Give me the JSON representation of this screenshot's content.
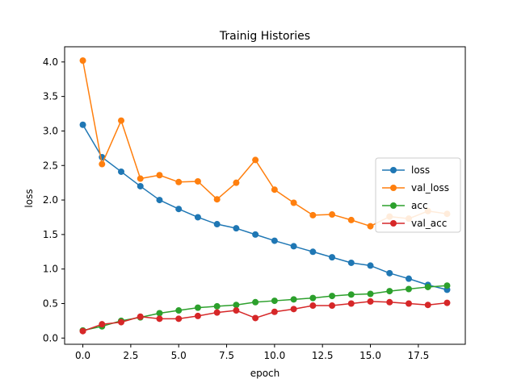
{
  "chart_data": {
    "type": "line",
    "title": "Trainig Histories",
    "xlabel": "epoch",
    "ylabel": "loss",
    "xlim": [
      -0.95,
      19.95
    ],
    "ylim": [
      -0.09,
      4.22
    ],
    "xticks": [
      0.0,
      2.5,
      5.0,
      7.5,
      10.0,
      12.5,
      15.0,
      17.5
    ],
    "xtick_labels": [
      "0.0",
      "2.5",
      "5.0",
      "7.5",
      "10.0",
      "12.5",
      "15.0",
      "17.5"
    ],
    "yticks": [
      0.0,
      0.5,
      1.0,
      1.5,
      2.0,
      2.5,
      3.0,
      3.5,
      4.0
    ],
    "ytick_labels": [
      "0.0",
      "0.5",
      "1.0",
      "1.5",
      "2.0",
      "2.5",
      "3.0",
      "3.5",
      "4.0"
    ],
    "grid": false,
    "legend_position": "center-right",
    "x": [
      0,
      1,
      2,
      3,
      4,
      5,
      6,
      7,
      8,
      9,
      10,
      11,
      12,
      13,
      14,
      15,
      16,
      17,
      18,
      19
    ],
    "series": [
      {
        "name": "loss",
        "color": "#1f77b4",
        "values": [
          3.09,
          2.62,
          2.41,
          2.2,
          2.0,
          1.87,
          1.75,
          1.65,
          1.59,
          1.5,
          1.41,
          1.33,
          1.25,
          1.17,
          1.09,
          1.05,
          0.94,
          0.86,
          0.77,
          0.7
        ]
      },
      {
        "name": "val_loss",
        "color": "#ff7f0e",
        "values": [
          4.02,
          2.52,
          3.15,
          2.31,
          2.36,
          2.26,
          2.27,
          2.01,
          2.25,
          2.58,
          2.15,
          1.96,
          1.78,
          1.79,
          1.71,
          1.62,
          1.76,
          1.73,
          1.84,
          1.8
        ]
      },
      {
        "name": "acc",
        "color": "#2ca02c",
        "values": [
          0.11,
          0.17,
          0.25,
          0.3,
          0.36,
          0.4,
          0.44,
          0.46,
          0.48,
          0.52,
          0.54,
          0.56,
          0.58,
          0.61,
          0.63,
          0.64,
          0.68,
          0.71,
          0.74,
          0.76
        ]
      },
      {
        "name": "val_acc",
        "color": "#d62728",
        "values": [
          0.1,
          0.2,
          0.23,
          0.31,
          0.28,
          0.28,
          0.32,
          0.37,
          0.4,
          0.29,
          0.38,
          0.42,
          0.47,
          0.47,
          0.5,
          0.53,
          0.52,
          0.5,
          0.48,
          0.51
        ]
      }
    ]
  }
}
